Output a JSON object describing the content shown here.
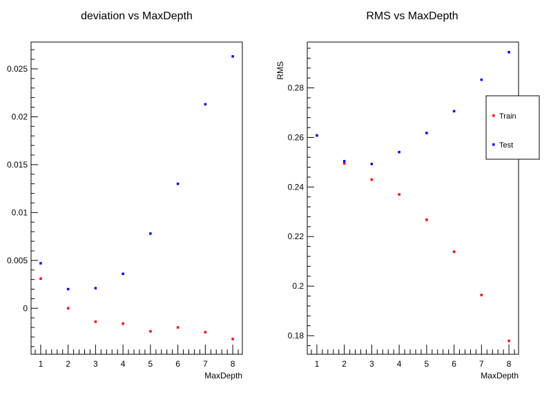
{
  "colors": {
    "train": "#ff0000",
    "test": "#0000ff",
    "axis": "#000000",
    "background": "#ffffff"
  },
  "chart_data": [
    {
      "type": "scatter",
      "title": "deviation vs MaxDepth",
      "xlabel": "MaxDepth",
      "ylabel": "",
      "xlim": [
        0.65,
        8.35
      ],
      "ylim": [
        -0.0048,
        0.0278
      ],
      "x_ticks": [
        1,
        2,
        3,
        4,
        5,
        6,
        7,
        8
      ],
      "y_ticks": [
        0,
        0.005,
        0.01,
        0.015,
        0.02,
        0.025
      ],
      "y_tick_labels": [
        "0",
        "0.005",
        "0.01",
        "0.015",
        "0.02",
        "0.025"
      ],
      "legend": null,
      "series": [
        {
          "color_key": "train",
          "x": [
            1,
            2,
            3,
            4,
            5,
            6,
            7,
            8
          ],
          "y": [
            0.0031,
            0.0,
            -0.0014,
            -0.0016,
            -0.0024,
            -0.002,
            -0.0025,
            -0.0032
          ]
        },
        {
          "color_key": "test",
          "x": [
            1,
            2,
            3,
            4,
            5,
            6,
            7,
            8
          ],
          "y": [
            0.0047,
            0.002,
            0.0021,
            0.0036,
            0.0078,
            0.013,
            0.0213,
            0.0263
          ]
        }
      ]
    },
    {
      "type": "scatter",
      "title": "RMS vs MaxDepth",
      "xlabel": "MaxDepth",
      "ylabel": "RMS",
      "xlim": [
        0.65,
        8.35
      ],
      "ylim": [
        0.1725,
        0.2985
      ],
      "x_ticks": [
        1,
        2,
        3,
        4,
        5,
        6,
        7,
        8
      ],
      "y_ticks": [
        0.18,
        0.2,
        0.22,
        0.24,
        0.26,
        0.28
      ],
      "y_tick_labels": [
        "0.18",
        "0.2",
        "0.22",
        "0.24",
        "0.26",
        "0.28"
      ],
      "legend": {
        "placement": "right",
        "entries": [
          {
            "name": "Train",
            "color_key": "train"
          },
          {
            "name": "Test",
            "color_key": "test"
          }
        ]
      },
      "series": [
        {
          "name": "Train",
          "color_key": "train",
          "x": [
            1,
            2,
            3,
            4,
            5,
            6,
            7,
            8
          ],
          "y": [
            0.2608,
            0.2495,
            0.243,
            0.237,
            0.2268,
            0.2139,
            0.1964,
            0.1779
          ]
        },
        {
          "name": "Test",
          "color_key": "test",
          "x": [
            1,
            2,
            3,
            4,
            5,
            6,
            7,
            8
          ],
          "y": [
            0.2608,
            0.2504,
            0.2493,
            0.2541,
            0.2618,
            0.2706,
            0.2833,
            0.2944
          ]
        }
      ]
    }
  ]
}
